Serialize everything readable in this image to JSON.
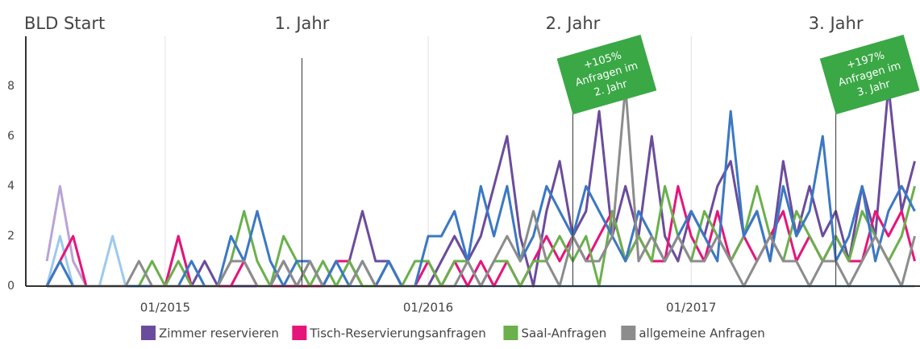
{
  "chart_data": {
    "type": "line",
    "annotations": [
      {
        "text": "BLD Start"
      },
      {
        "text": "1. Jahr",
        "x": 2015.52
      },
      {
        "text": "2. Jahr",
        "x": 2016.55,
        "flag": [
          "+105%",
          "Anfragen im",
          "2. Jahr"
        ]
      },
      {
        "text": "3. Jahr",
        "x": 2017.55,
        "flag": [
          "+197%",
          "Anfragen im",
          "3. Jahr"
        ]
      }
    ],
    "xlim": [
      2014.47,
      2017.87
    ],
    "xticks": [
      {
        "value": 2015,
        "label": "01/2015"
      },
      {
        "value": 2016,
        "label": "01/2016"
      },
      {
        "value": 2017,
        "label": "01/2017"
      }
    ],
    "ylim": [
      0,
      10
    ],
    "yticks": [
      0,
      2,
      4,
      6,
      8
    ],
    "grid": true,
    "x": [
      2014.55,
      2014.6,
      2014.65,
      2014.7,
      2014.75,
      2014.8,
      2014.85,
      2014.9,
      2014.95,
      2015.0,
      2015.05,
      2015.1,
      2015.15,
      2015.2,
      2015.25,
      2015.3,
      2015.35,
      2015.4,
      2015.45,
      2015.5,
      2015.55,
      2015.6,
      2015.65,
      2015.7,
      2015.75,
      2015.8,
      2015.85,
      2015.9,
      2015.95,
      2016.0,
      2016.05,
      2016.1,
      2016.15,
      2016.2,
      2016.25,
      2016.3,
      2016.35,
      2016.4,
      2016.45,
      2016.5,
      2016.55,
      2016.6,
      2016.65,
      2016.7,
      2016.75,
      2016.8,
      2016.85,
      2016.9,
      2016.95,
      2017.0,
      2017.05,
      2017.1,
      2017.15,
      2017.2,
      2017.25,
      2017.3,
      2017.35,
      2017.4,
      2017.45,
      2017.5,
      2017.55,
      2017.6,
      2017.65,
      2017.7,
      2017.75,
      2017.8,
      2017.85
    ],
    "series": [
      {
        "color": "#b9a3d6",
        "values": [
          1,
          4,
          1,
          0,
          0,
          0,
          0,
          0,
          0,
          0,
          0,
          0,
          0,
          0,
          0,
          0,
          0,
          0,
          0,
          0,
          0,
          0,
          0,
          0,
          0,
          0,
          0,
          0,
          0,
          0,
          0,
          0,
          0,
          0,
          0,
          0,
          0,
          0,
          0,
          0,
          0,
          0,
          0,
          0,
          0,
          0,
          0,
          0,
          0,
          0,
          0,
          0,
          0,
          0,
          0,
          0,
          0,
          0,
          0,
          0,
          0,
          0,
          0,
          0,
          0,
          0,
          0
        ]
      },
      {
        "color": "#9cc9ee",
        "values": [
          0,
          2,
          0,
          0,
          0,
          2,
          0,
          0,
          0,
          0,
          0,
          0,
          0,
          0,
          0,
          0,
          0,
          0,
          0,
          0,
          0,
          0,
          0,
          0,
          0,
          0,
          0,
          0,
          0,
          0,
          0,
          0,
          0,
          0,
          0,
          0,
          0,
          0,
          0,
          0,
          0,
          0,
          0,
          0,
          0,
          0,
          0,
          0,
          0,
          0,
          0,
          0,
          0,
          0,
          0,
          0,
          0,
          0,
          0,
          0,
          0,
          0,
          0,
          0,
          0,
          0,
          0
        ]
      },
      {
        "name": "Zimmer reservieren",
        "color": "#6a4c9c",
        "values": [
          0,
          0,
          0,
          0,
          0,
          0,
          0,
          0,
          0,
          0,
          2,
          0,
          1,
          0,
          0,
          0,
          0,
          0,
          1,
          0,
          1,
          0,
          1,
          1,
          3,
          1,
          1,
          0,
          0,
          0,
          1,
          2,
          1,
          2,
          4,
          6,
          2,
          0,
          3,
          5,
          2,
          3,
          7,
          2,
          4,
          2,
          6,
          2,
          1,
          3,
          2,
          4,
          5,
          2,
          3,
          1,
          5,
          2,
          4,
          2,
          3,
          1,
          4,
          2,
          8,
          3,
          5
        ]
      },
      {
        "name": "Tisch-Reservierungsanfragen",
        "color": "#e6157a",
        "values": [
          0,
          1,
          2,
          0,
          0,
          0,
          0,
          0,
          0,
          0,
          2,
          0,
          0,
          0,
          0,
          1,
          0,
          0,
          0,
          0,
          0,
          0,
          1,
          1,
          0,
          0,
          1,
          0,
          0,
          1,
          0,
          1,
          0,
          1,
          0,
          1,
          0,
          1,
          2,
          1,
          2,
          1,
          2,
          3,
          1,
          2,
          1,
          1,
          4,
          2,
          1,
          3,
          1,
          2,
          1,
          2,
          3,
          1,
          2,
          1,
          2,
          1,
          1,
          3,
          2,
          3,
          1
        ]
      },
      {
        "name": "Saal-Anfragen",
        "color": "#6ab04c",
        "values": [
          0,
          0,
          0,
          0,
          0,
          0,
          0,
          0,
          1,
          0,
          1,
          0,
          0,
          0,
          1,
          3,
          1,
          0,
          2,
          1,
          0,
          1,
          0,
          1,
          0,
          0,
          1,
          0,
          1,
          1,
          0,
          1,
          1,
          0,
          1,
          1,
          0,
          1,
          1,
          2,
          1,
          2,
          0,
          3,
          1,
          2,
          1,
          4,
          2,
          1,
          3,
          2,
          1,
          2,
          4,
          2,
          1,
          3,
          2,
          1,
          2,
          1,
          3,
          2,
          1,
          2,
          4
        ]
      },
      {
        "color": "#3a78c3",
        "values": [
          0,
          1,
          0,
          0,
          0,
          0,
          0,
          0,
          0,
          0,
          0,
          1,
          0,
          0,
          2,
          1,
          3,
          1,
          0,
          1,
          1,
          0,
          1,
          0,
          1,
          0,
          1,
          0,
          0,
          2,
          2,
          3,
          1,
          4,
          2,
          4,
          1,
          2,
          4,
          3,
          2,
          4,
          3,
          2,
          1,
          3,
          2,
          1,
          2,
          3,
          2,
          1,
          7,
          2,
          3,
          1,
          4,
          2,
          3,
          6,
          1,
          2,
          4,
          1,
          3,
          4,
          3
        ]
      },
      {
        "name": "allgemeine Anfragen",
        "color": "#8c8c8c",
        "values": [
          0,
          0,
          0,
          0,
          0,
          0,
          0,
          1,
          0,
          0,
          0,
          0,
          0,
          0,
          1,
          1,
          0,
          0,
          1,
          0,
          1,
          0,
          0,
          0,
          1,
          0,
          0,
          0,
          0,
          0,
          0,
          0,
          1,
          0,
          1,
          2,
          1,
          3,
          1,
          0,
          2,
          1,
          1,
          2,
          8,
          1,
          2,
          1,
          2,
          1,
          1,
          2,
          1,
          0,
          1,
          2,
          1,
          1,
          0,
          1,
          1,
          0,
          1,
          2,
          1,
          0,
          2
        ]
      }
    ]
  }
}
